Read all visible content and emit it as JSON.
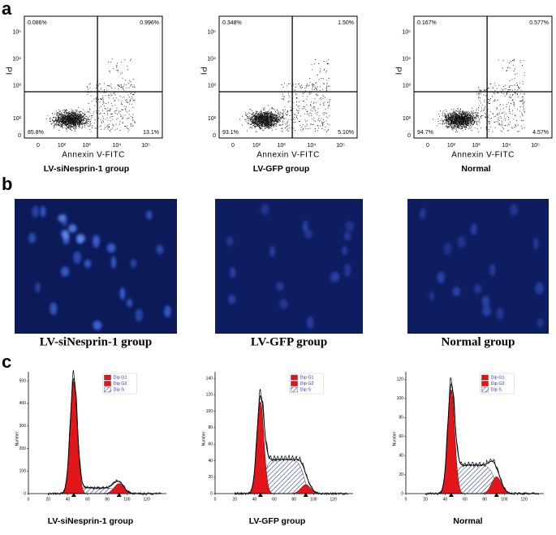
{
  "panel_a": {
    "label": "a",
    "axis_x": "Annexin V-FITC",
    "axis_y": "PI",
    "ticks_x": [
      "0",
      "10²",
      "10³",
      "10⁴",
      "10⁵"
    ],
    "ticks_y": [
      "10⁵",
      "10⁴",
      "10³",
      "10²",
      "0"
    ],
    "plots": [
      {
        "quadrants": [
          "0.086%",
          "0.996%",
          "85.8%",
          "13.1%"
        ],
        "title": "LV-siNesprin-1 group"
      },
      {
        "quadrants": [
          "0.348%",
          "1.50%",
          "93.1%",
          "5.10%"
        ],
        "title": "LV-GFP group"
      },
      {
        "quadrants": [
          "0.167%",
          "0.577%",
          "94.7%",
          "4.57%"
        ],
        "title": "Normal"
      }
    ]
  },
  "panel_b": {
    "label": "b",
    "images": [
      {
        "caption": "LV-siNesprin-1 group"
      },
      {
        "caption": "LV-GFP group"
      },
      {
        "caption": "Normal group"
      }
    ]
  },
  "panel_c": {
    "label": "c",
    "axis_y": "Number",
    "legend": [
      "Dip G1",
      "Dip G2",
      "Dip S"
    ],
    "ticks_x": [
      "0",
      "20",
      "40",
      "60",
      "80",
      "100",
      "120"
    ],
    "plots": [
      {
        "ticks_y": [
          "0",
          "100",
          "200",
          "300",
          "400",
          "500"
        ],
        "title": "LV-siNesprin-1 group"
      },
      {
        "ticks_y": [
          "0",
          "20",
          "40",
          "60",
          "80",
          "100",
          "120",
          "140"
        ],
        "title": "LV-GFP group"
      },
      {
        "ticks_y": [
          "0",
          "20",
          "40",
          "60",
          "80",
          "100",
          "120"
        ],
        "title": "Normal"
      }
    ]
  }
}
